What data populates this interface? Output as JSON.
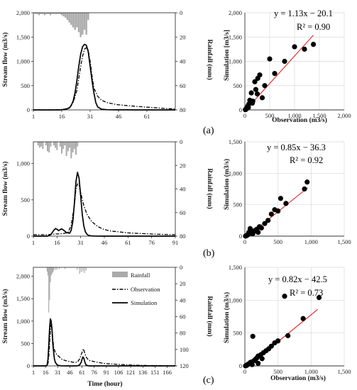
{
  "chart_data": [
    {
      "id": "a-hydrograph",
      "type": "line",
      "xlabel": "",
      "ylabel": "Stream flow (m3/s)",
      "y2label": "Rainfall (mm)",
      "xlim": [
        1,
        76
      ],
      "xticks": [
        "1",
        "16",
        "31",
        "46",
        "61"
      ],
      "ylim": [
        0,
        2000
      ],
      "yticks": [
        "0",
        "500",
        "1,000",
        "1,500",
        "2,000"
      ],
      "y2lim": [
        0,
        80
      ],
      "y2ticks": [
        "0",
        "20",
        "40",
        "60",
        "80"
      ],
      "series": [
        {
          "name": "Rainfall",
          "kind": "bar-down",
          "x": [
            2,
            3,
            4,
            5,
            6,
            7,
            8,
            9,
            10,
            11,
            12,
            13,
            14,
            15,
            16,
            17,
            18,
            19,
            20,
            21,
            22,
            23,
            24,
            25,
            26,
            27,
            28,
            29,
            30
          ],
          "values": [
            1,
            1,
            2,
            1,
            1,
            2,
            1,
            1,
            2,
            1,
            1,
            1,
            1,
            1,
            2,
            3,
            4,
            6,
            8,
            10,
            12,
            14,
            12,
            16,
            20,
            18,
            14,
            18,
            6
          ]
        },
        {
          "name": "Observation",
          "kind": "line",
          "x": [
            1,
            10,
            15,
            18,
            20,
            22,
            24,
            25,
            26,
            27,
            28,
            29,
            30,
            31,
            32,
            33,
            35,
            37,
            40,
            45,
            50,
            55,
            60,
            65,
            70,
            76
          ],
          "values": [
            0,
            0,
            5,
            20,
            50,
            150,
            400,
            650,
            900,
            1100,
            1250,
            1280,
            1230,
            1000,
            700,
            450,
            280,
            200,
            150,
            110,
            90,
            75,
            60,
            45,
            30,
            20
          ]
        },
        {
          "name": "Simulation",
          "kind": "line",
          "x": [
            1,
            15,
            18,
            20,
            21,
            22,
            23,
            24,
            25,
            26,
            27,
            28,
            29,
            30,
            31,
            32,
            33,
            34,
            35,
            37,
            40,
            45,
            50,
            55,
            60,
            70,
            76
          ],
          "values": [
            0,
            0,
            10,
            40,
            90,
            180,
            350,
            600,
            900,
            1150,
            1300,
            1350,
            1330,
            1200,
            900,
            600,
            350,
            150,
            60,
            15,
            5,
            2,
            1,
            0,
            0,
            0,
            0
          ]
        }
      ]
    },
    {
      "id": "a-scatter",
      "type": "scatter",
      "xlabel": "Observation (m3/s)",
      "ylabel": "Simulation [m3/s]",
      "xlim": [
        0,
        2000
      ],
      "ylim": [
        0,
        2000
      ],
      "xticks": [
        "0",
        "500",
        "1,000",
        "1,500",
        "2,000"
      ],
      "yticks": [
        "0",
        "500",
        "1,000",
        "1,500",
        "2,000"
      ],
      "equation": "y = 1.13x − 20.1",
      "r2": "R² = 0.90",
      "fit": {
        "slope": 1.13,
        "intercept": -20.1,
        "x_range": [
          20,
          1380
        ]
      },
      "points": [
        [
          10,
          5
        ],
        [
          20,
          15
        ],
        [
          30,
          25
        ],
        [
          40,
          45
        ],
        [
          50,
          60
        ],
        [
          60,
          80
        ],
        [
          80,
          120
        ],
        [
          100,
          200
        ],
        [
          130,
          350
        ],
        [
          160,
          180
        ],
        [
          200,
          580
        ],
        [
          220,
          420
        ],
        [
          260,
          650
        ],
        [
          300,
          720
        ],
        [
          350,
          250
        ],
        [
          400,
          500
        ],
        [
          500,
          1050
        ],
        [
          600,
          750
        ],
        [
          800,
          1000
        ],
        [
          1000,
          1300
        ],
        [
          1200,
          1250
        ],
        [
          1380,
          1350
        ],
        [
          20,
          10
        ],
        [
          70,
          50
        ],
        [
          150,
          140
        ],
        [
          250,
          330
        ]
      ],
      "panel_label": "(a)"
    },
    {
      "id": "b-hydrograph",
      "type": "line",
      "xlabel": "",
      "ylabel": "Stream flow (m3/s)",
      "y2label": "Rainfall (mm)",
      "xlim": [
        1,
        91
      ],
      "xticks": [
        "1",
        "16",
        "31",
        "46",
        "61",
        "76",
        "91"
      ],
      "ylim": [
        0,
        1300
      ],
      "yticks": [
        "0",
        "500",
        "1,000"
      ],
      "y2lim": [
        0,
        80
      ],
      "y2ticks": [
        "0",
        "20",
        "40",
        "60",
        "80"
      ],
      "series": [
        {
          "name": "Rainfall",
          "kind": "bar-down",
          "x": [
            4,
            5,
            6,
            7,
            9,
            10,
            11,
            12,
            14,
            15,
            16,
            18,
            19,
            20,
            21,
            22,
            23,
            24,
            25,
            26,
            27,
            28,
            29
          ],
          "values": [
            3,
            5,
            4,
            6,
            3,
            8,
            9,
            4,
            3,
            5,
            7,
            4,
            10,
            6,
            3,
            12,
            8,
            5,
            14,
            9,
            6,
            11,
            4
          ]
        },
        {
          "name": "Observation",
          "kind": "line",
          "x": [
            1,
            5,
            10,
            13,
            15,
            17,
            20,
            23,
            25,
            27,
            28,
            29,
            30,
            31,
            33,
            35,
            38,
            42,
            46,
            50,
            55,
            61,
            70,
            80,
            91
          ],
          "values": [
            20,
            20,
            20,
            25,
            30,
            30,
            35,
            50,
            150,
            420,
            650,
            720,
            700,
            600,
            420,
            300,
            200,
            130,
            90,
            70,
            60,
            45,
            35,
            25,
            20
          ]
        },
        {
          "name": "Simulation",
          "kind": "line",
          "x": [
            1,
            10,
            12,
            14,
            15,
            16,
            17,
            18,
            19,
            20,
            22,
            24,
            25,
            26,
            27,
            28,
            29,
            30,
            31,
            32,
            33,
            34,
            35,
            36,
            38,
            40,
            45,
            50,
            91
          ],
          "values": [
            0,
            0,
            20,
            80,
            105,
            95,
            75,
            90,
            100,
            85,
            50,
            40,
            80,
            200,
            450,
            750,
            880,
            800,
            550,
            300,
            140,
            60,
            25,
            10,
            3,
            1,
            0,
            0,
            0
          ]
        }
      ]
    },
    {
      "id": "b-scatter",
      "type": "scatter",
      "xlabel": "",
      "ylabel": "Simulation (m3/s)",
      "xlim": [
        0,
        1500
      ],
      "ylim": [
        0,
        1500
      ],
      "xticks": [
        "0",
        "500",
        "1,000",
        "1,500"
      ],
      "yticks": [
        "0",
        "500",
        "1,000",
        "1,500"
      ],
      "equation": "y = 0.85x − 36.3",
      "r2": "R² = 0.92",
      "fit": {
        "slope": 0.85,
        "intercept": -36.3,
        "x_range": [
          40,
          950
        ]
      },
      "points": [
        [
          10,
          0
        ],
        [
          20,
          5
        ],
        [
          30,
          10
        ],
        [
          50,
          25
        ],
        [
          60,
          60
        ],
        [
          80,
          120
        ],
        [
          100,
          80
        ],
        [
          120,
          40
        ],
        [
          150,
          90
        ],
        [
          180,
          110
        ],
        [
          200,
          60
        ],
        [
          250,
          130
        ],
        [
          300,
          200
        ],
        [
          350,
          250
        ],
        [
          400,
          350
        ],
        [
          450,
          420
        ],
        [
          500,
          400
        ],
        [
          540,
          600
        ],
        [
          620,
          520
        ],
        [
          900,
          750
        ],
        [
          940,
          860
        ],
        [
          40,
          20
        ],
        [
          70,
          40
        ],
        [
          130,
          70
        ],
        [
          220,
          150
        ]
      ],
      "panel_label": "(b)"
    },
    {
      "id": "c-hydrograph",
      "type": "line",
      "xlabel": "Time (hour)",
      "ylabel": "Stream flow (m3/s)",
      "y2label": "Rainfall (mm)",
      "xlim": [
        1,
        176
      ],
      "xticks": [
        "1",
        "16",
        "31",
        "46",
        "61",
        "76",
        "91",
        "106",
        "121",
        "136",
        "151",
        "166"
      ],
      "ylim": [
        0,
        2200
      ],
      "yticks": [
        "0",
        "500",
        "1,000",
        "1,500",
        "2,000"
      ],
      "y2lim": [
        0,
        120
      ],
      "y2ticks": [
        "0",
        "20",
        "40",
        "60",
        "80",
        "100",
        "120"
      ],
      "legend": [
        "Rainfall",
        "Observation",
        "Simulation"
      ],
      "series": [
        {
          "name": "Rainfall",
          "kind": "bar-down",
          "x": [
            18,
            19,
            20,
            21,
            22,
            23,
            24,
            25,
            26,
            28,
            30,
            33,
            40,
            55,
            58,
            60,
            62,
            64,
            66
          ],
          "values": [
            5,
            10,
            55,
            40,
            18,
            10,
            8,
            6,
            4,
            3,
            3,
            2,
            2,
            3,
            8,
            6,
            5,
            7,
            4
          ]
        },
        {
          "name": "Observation",
          "kind": "line",
          "x": [
            1,
            10,
            17,
            19,
            20,
            21,
            22,
            23,
            24,
            25,
            26,
            28,
            30,
            33,
            36,
            40,
            45,
            50,
            55,
            58,
            60,
            62,
            63,
            64,
            66,
            68,
            70,
            75,
            80,
            90,
            100,
            110,
            120,
            140,
            160,
            176
          ],
          "values": [
            0,
            0,
            5,
            50,
            200,
            500,
            800,
            950,
            850,
            600,
            420,
            300,
            250,
            200,
            150,
            120,
            100,
            80,
            80,
            150,
            250,
            350,
            380,
            300,
            200,
            150,
            120,
            100,
            80,
            50,
            40,
            30,
            20,
            10,
            5,
            0
          ]
        },
        {
          "name": "Simulation",
          "kind": "line",
          "x": [
            1,
            17,
            18,
            19,
            20,
            21,
            22,
            23,
            24,
            25,
            26,
            27,
            28,
            30,
            32,
            35,
            40,
            50,
            55,
            58,
            60,
            61,
            62,
            63,
            64,
            65,
            66,
            68,
            70,
            75,
            80,
            176
          ],
          "values": [
            0,
            0,
            20,
            150,
            450,
            850,
            1050,
            1000,
            800,
            500,
            300,
            150,
            80,
            30,
            10,
            2,
            0,
            0,
            0,
            20,
            80,
            150,
            200,
            180,
            120,
            60,
            20,
            5,
            0,
            0,
            0,
            0
          ]
        }
      ]
    },
    {
      "id": "c-scatter",
      "type": "scatter",
      "xlabel": "Observation (m3/s)",
      "ylabel": "Simulation (m3/s)",
      "xlim": [
        0,
        1500
      ],
      "ylim": [
        0,
        1500
      ],
      "xticks": [
        "0",
        "500",
        "1,000",
        "1,500"
      ],
      "yticks": [
        "0",
        "500",
        "1,000",
        "1,500"
      ],
      "equation": "y = 0.82x − 42.5",
      "r2": "R² = 0.73",
      "fit": {
        "slope": 0.82,
        "intercept": -42.5,
        "x_range": [
          60,
          1100
        ]
      },
      "points": [
        [
          10,
          0
        ],
        [
          20,
          5
        ],
        [
          30,
          10
        ],
        [
          40,
          20
        ],
        [
          60,
          30
        ],
        [
          80,
          50
        ],
        [
          100,
          60
        ],
        [
          120,
          450
        ],
        [
          140,
          80
        ],
        [
          160,
          100
        ],
        [
          180,
          120
        ],
        [
          200,
          150
        ],
        [
          240,
          170
        ],
        [
          280,
          200
        ],
        [
          320,
          230
        ],
        [
          360,
          260
        ],
        [
          400,
          300
        ],
        [
          450,
          350
        ],
        [
          500,
          380
        ],
        [
          600,
          1060
        ],
        [
          650,
          460
        ],
        [
          880,
          720
        ],
        [
          1120,
          1040
        ],
        [
          70,
          40
        ],
        [
          110,
          20
        ],
        [
          200,
          40
        ],
        [
          260,
          110
        ]
      ],
      "panel_label": "(c)"
    }
  ],
  "colors": {
    "rainfall": "#aaaaaa",
    "series_line": "#000000",
    "fit_line": "#e02020",
    "grid": "#d9d9d9",
    "axis": "#333333"
  }
}
